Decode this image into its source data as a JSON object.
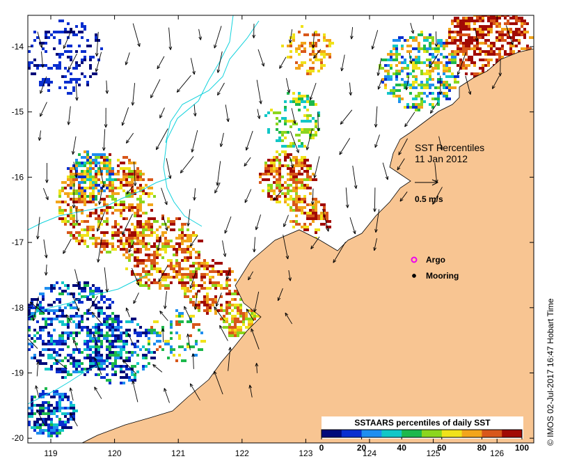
{
  "map": {
    "title": "SST Percentiles",
    "date": "11 Jan 2012",
    "velocity_scale_label": "0.5 m/s",
    "legend_argo": "Argo",
    "legend_mooring": "Mooring",
    "credit": "© IMOS 02-Jul-2017 16:47 Hobart Time",
    "colorbar_title": "SSTAARS percentiles of daily SST",
    "colorbar_ticks": [
      "0",
      "20",
      "40",
      "60",
      "80",
      "100"
    ],
    "colorbar_colors": [
      "#000a7a",
      "#0a2fd0",
      "#1f8ef0",
      "#12c7c7",
      "#1db84c",
      "#8bd61e",
      "#f0e21a",
      "#f2a51b",
      "#d8571a",
      "#a10a05"
    ],
    "lon_ticks": [
      "119",
      "120",
      "121",
      "122",
      "123",
      "124",
      "125",
      "126"
    ],
    "lat_ticks": [
      "-14",
      "-15",
      "-16",
      "-17",
      "-18",
      "-19",
      "-20"
    ],
    "colors": {
      "land": "#f8c592",
      "isobath": "#11d2dc",
      "argo": "#ee00ee",
      "arrow": "#000000"
    }
  }
}
